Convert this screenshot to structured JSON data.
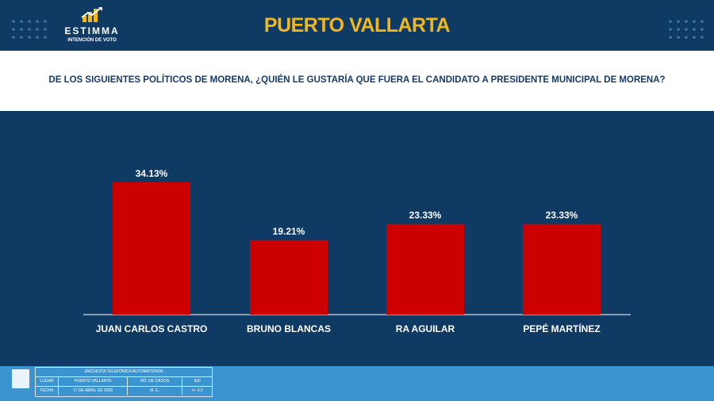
{
  "brand": {
    "name": "ESTIMMA",
    "tagline": "INTENCIÓN DE VOTO"
  },
  "title": "PUERTO VALLARTA",
  "question": "DE LOS SIGUIENTES POLÍTICOS DE MORENA, ¿QUIÉN LE GUSTARÍA QUE FUERA EL CANDIDATO A PRESIDENTE MUNICIPAL DE MORENA?",
  "chart_data": {
    "type": "bar",
    "categories": [
      "JUAN CARLOS CASTRO",
      "BRUNO BLANCAS",
      "RA AGUILAR",
      "PEPÉ  MARTÍNEZ"
    ],
    "values": [
      34.13,
      19.21,
      23.33,
      23.33
    ],
    "value_labels": [
      "34.13%",
      "19.21%",
      "23.33%",
      "23.33%"
    ],
    "ylim": [
      0,
      40
    ],
    "grid": false,
    "colors": {
      "bar": "#cc0000",
      "label": "#ffffff"
    }
  },
  "footnote": {
    "header": "ENCUESTA TELEFÓNICA AUTOMATIZADA",
    "rows": [
      [
        "LUGAR",
        "PUERTO VALLARTA",
        "NO. DE CASOS",
        "600"
      ],
      [
        "FECHA",
        "17 DE ABRIL DE 2026",
        "M. E.",
        "+/- 4.2"
      ]
    ]
  },
  "colors": {
    "background": "#0f3a63",
    "title": "#f4b71a",
    "question": "#173a66",
    "bottom_band": "#3b94d0"
  }
}
